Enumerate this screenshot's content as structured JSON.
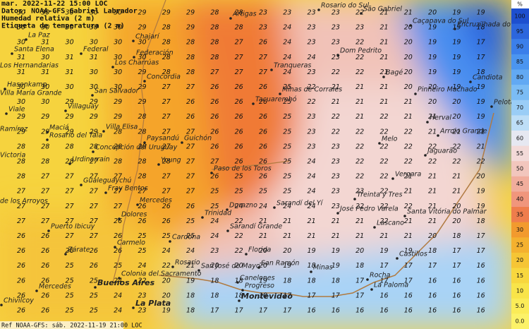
{
  "header": {
    "lines": [
      "mar. 2022-11-22 15:00 LOC",
      "Datos: NOAA-GFS Gabriel Labrador",
      "Humedad relativa (2 m)",
      "Etiqueta de temperatura (2 m)"
    ]
  },
  "footer": "Ref NOAA-GFS: sáb. 2022-11-19 21:00 LOC",
  "colorbar": {
    "unit": "%",
    "labels": [
      "100",
      "95",
      "90",
      "85",
      "80",
      "75",
      "70",
      "65",
      "60",
      "55",
      "50",
      "45",
      "40",
      "35",
      "30",
      "25",
      "20",
      "15",
      "10",
      "5.0",
      "0.0"
    ],
    "colors": [
      "#1d4fcf",
      "#2c66dd",
      "#3b7fea",
      "#4b95f0",
      "#62a9f3",
      "#7bbcf5",
      "#9acdf6",
      "#bddef7",
      "#e6e8f1",
      "#f3dad8",
      "#f2c6bd",
      "#f1ad9c",
      "#f0967c",
      "#ef7d4c",
      "#f29a2e",
      "#f4b12f",
      "#f6c535",
      "#f8d73e",
      "#f9e449",
      "#fbec58",
      "#fcf268"
    ]
  },
  "grid": {
    "rows": [
      [
        30,
        30,
        30,
        30,
        30,
        29,
        29,
        29,
        28,
        28,
        23,
        23,
        23,
        23,
        22,
        21,
        21,
        20,
        19,
        19
      ],
      [
        30,
        30,
        30,
        30,
        30,
        29,
        28,
        29,
        28,
        28,
        23,
        24,
        23,
        23,
        23,
        21,
        20,
        19,
        19,
        18
      ],
      [
        30,
        31,
        30,
        30,
        30,
        30,
        28,
        28,
        28,
        27,
        26,
        24,
        23,
        23,
        22,
        21,
        20,
        19,
        19,
        17
      ],
      [
        31,
        30,
        31,
        31,
        30,
        30,
        28,
        28,
        28,
        27,
        27,
        24,
        24,
        23,
        22,
        21,
        20,
        19,
        19,
        17
      ],
      [
        31,
        31,
        31,
        30,
        30,
        29,
        28,
        28,
        27,
        27,
        27,
        24,
        23,
        22,
        22,
        21,
        20,
        19,
        19,
        18
      ],
      [
        30,
        30,
        30,
        30,
        30,
        29,
        27,
        27,
        26,
        26,
        26,
        25,
        22,
        21,
        21,
        21,
        20,
        20,
        19,
        19
      ],
      [
        30,
        30,
        29,
        29,
        29,
        29,
        27,
        26,
        26,
        26,
        26,
        25,
        22,
        21,
        21,
        21,
        21,
        20,
        20,
        19
      ],
      [
        29,
        29,
        29,
        29,
        29,
        28,
        27,
        26,
        26,
        26,
        26,
        25,
        23,
        22,
        21,
        22,
        21,
        21,
        20,
        19
      ],
      [
        29,
        29,
        29,
        29,
        28,
        28,
        27,
        27,
        26,
        26,
        26,
        25,
        23,
        22,
        22,
        22,
        22,
        21,
        21,
        21
      ],
      [
        28,
        28,
        28,
        28,
        28,
        28,
        27,
        27,
        26,
        26,
        26,
        25,
        23,
        23,
        22,
        22,
        22,
        22,
        22,
        21
      ],
      [
        28,
        28,
        28,
        27,
        28,
        28,
        28,
        27,
        27,
        26,
        26,
        25,
        24,
        23,
        22,
        22,
        22,
        22,
        22,
        22
      ],
      [
        28,
        27,
        27,
        27,
        27,
        28,
        27,
        27,
        26,
        25,
        26,
        25,
        24,
        23,
        22,
        22,
        21,
        21,
        21,
        20
      ],
      [
        27,
        27,
        27,
        27,
        27,
        27,
        27,
        27,
        25,
        25,
        25,
        25,
        24,
        23,
        23,
        22,
        21,
        21,
        21,
        19
      ],
      [
        27,
        27,
        27,
        27,
        27,
        26,
        26,
        26,
        25,
        24,
        24,
        24,
        24,
        23,
        22,
        22,
        22,
        21,
        20,
        19
      ],
      [
        27,
        27,
        27,
        27,
        26,
        26,
        26,
        25,
        24,
        22,
        21,
        21,
        21,
        21,
        21,
        22,
        21,
        21,
        20,
        18
      ],
      [
        26,
        26,
        27,
        27,
        26,
        25,
        25,
        25,
        24,
        22,
        21,
        21,
        21,
        21,
        21,
        21,
        21,
        20,
        18,
        17
      ],
      [
        26,
        26,
        26,
        26,
        26,
        25,
        24,
        24,
        23,
        22,
        20,
        20,
        19,
        19,
        20,
        19,
        19,
        18,
        17,
        17
      ],
      [
        26,
        26,
        25,
        26,
        25,
        24,
        22,
        21,
        20,
        20,
        20,
        19,
        18,
        19,
        18,
        17,
        17,
        17,
        17,
        16
      ],
      [
        26,
        26,
        25,
        25,
        24,
        22,
        20,
        19,
        18,
        18,
        19,
        18,
        18,
        18,
        17,
        17,
        17,
        16,
        16,
        16
      ],
      [
        26,
        26,
        25,
        25,
        24,
        23,
        20,
        18,
        18,
        18,
        18,
        17,
        17,
        17,
        17,
        16,
        16,
        16,
        16,
        16
      ],
      [
        26,
        26,
        25,
        25,
        24,
        23,
        19,
        18,
        17,
        17,
        17,
        17,
        16,
        16,
        16,
        16,
        16,
        16,
        16,
        16
      ]
    ]
  },
  "places": [
    "Artigas",
    "Rosario do Sul",
    "São Gabriel",
    "Caçapava do Sul",
    "Encruzilhada do Sul",
    "La Paz",
    "Chajarí",
    "Santa Elena",
    "Federal",
    "Federación",
    "Dom Pedrito",
    "Los Hernandarias",
    "Los Charrúas",
    "Tranqueras",
    "Concordia",
    "Bagé",
    "Candiota",
    "Hasenkamp",
    "Villa María Grande",
    "San Salvador",
    "Minas de Corrales",
    "Pinheiro Machado",
    "Viale",
    "Villaguay",
    "Tacuarembó",
    "Pelotas",
    "Herval",
    "Arroio Grande",
    "Ramírez",
    "Maciá",
    "Rosario del Tala",
    "Villa Elisa",
    "Paysandú",
    "Guichón",
    "Melo",
    "Concepción del Uruguay",
    "Victoria",
    "Jaguarão",
    "Urdinarrain",
    "Young",
    "Paso de los Toros",
    "Gualeguaychú",
    "Vergara",
    "Fray Bentos",
    "Mercedes",
    "Treinta y Tres",
    "de los Arroyos",
    "Sarandí del Yí",
    "Durazno",
    "José Pedro Varela",
    "Santa Vitória do Palmar",
    "Dolores",
    "Trinidad",
    "Puerto Ibicuy",
    "Sarandí Grande",
    "Lascano",
    "Cardona",
    "Carmelo",
    "Zárate",
    "Florida",
    "Castillos",
    "Colonia del Sacramento",
    "Rosario",
    "San José de Mayo",
    "San Ramón",
    "Minas",
    "Rocha",
    "Canelones",
    "Buenos Aires",
    "Mercedes",
    "Progreso",
    "La Paloma",
    "Montevideo",
    "Chivilcoy",
    "La Plata"
  ]
}
